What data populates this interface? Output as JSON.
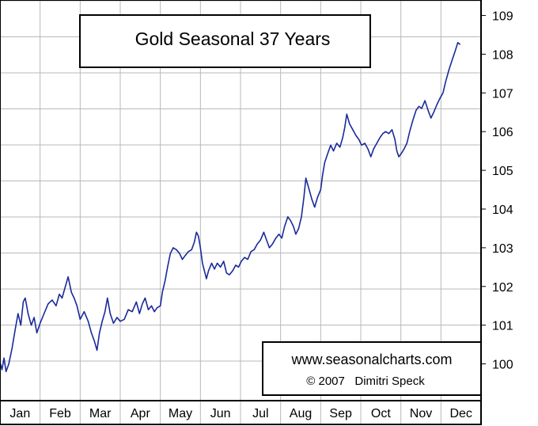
{
  "chart_data": {
    "type": "line",
    "title": "Gold Seasonal 37 Years",
    "credit_url": "www.seasonalcharts.com",
    "credit_author": "© 2007   Dimitri Speck",
    "x_categories": [
      "Jan",
      "Feb",
      "Mar",
      "Apr",
      "May",
      "Jun",
      "Jul",
      "Aug",
      "Sep",
      "Oct",
      "Nov",
      "Dec"
    ],
    "y_ticks": [
      100,
      101,
      102,
      103,
      104,
      105,
      106,
      107,
      108,
      109
    ],
    "ylim": [
      99.05,
      109.4
    ],
    "xlim": [
      0,
      12
    ],
    "grid": true,
    "y_axis_side": "right",
    "line_color": "#1a2a9a",
    "series": [
      {
        "values": [
          [
            0.0,
            100.05
          ],
          [
            0.05,
            99.85
          ],
          [
            0.1,
            100.15
          ],
          [
            0.15,
            99.8
          ],
          [
            0.22,
            100.0
          ],
          [
            0.3,
            100.4
          ],
          [
            0.38,
            100.9
          ],
          [
            0.45,
            101.3
          ],
          [
            0.52,
            101.0
          ],
          [
            0.58,
            101.6
          ],
          [
            0.63,
            101.7
          ],
          [
            0.7,
            101.3
          ],
          [
            0.78,
            101.0
          ],
          [
            0.85,
            101.2
          ],
          [
            0.92,
            100.8
          ],
          [
            1.0,
            101.05
          ],
          [
            1.1,
            101.3
          ],
          [
            1.2,
            101.55
          ],
          [
            1.3,
            101.65
          ],
          [
            1.4,
            101.5
          ],
          [
            1.48,
            101.8
          ],
          [
            1.55,
            101.7
          ],
          [
            1.63,
            102.0
          ],
          [
            1.7,
            102.25
          ],
          [
            1.78,
            101.85
          ],
          [
            1.85,
            101.7
          ],
          [
            1.92,
            101.5
          ],
          [
            2.0,
            101.15
          ],
          [
            2.1,
            101.35
          ],
          [
            2.2,
            101.1
          ],
          [
            2.28,
            100.8
          ],
          [
            2.35,
            100.6
          ],
          [
            2.42,
            100.35
          ],
          [
            2.48,
            100.8
          ],
          [
            2.55,
            101.1
          ],
          [
            2.62,
            101.35
          ],
          [
            2.68,
            101.7
          ],
          [
            2.75,
            101.3
          ],
          [
            2.83,
            101.05
          ],
          [
            2.92,
            101.2
          ],
          [
            3.0,
            101.1
          ],
          [
            3.1,
            101.15
          ],
          [
            3.2,
            101.4
          ],
          [
            3.3,
            101.35
          ],
          [
            3.4,
            101.6
          ],
          [
            3.48,
            101.3
          ],
          [
            3.55,
            101.55
          ],
          [
            3.62,
            101.7
          ],
          [
            3.7,
            101.4
          ],
          [
            3.78,
            101.5
          ],
          [
            3.85,
            101.35
          ],
          [
            3.92,
            101.45
          ],
          [
            4.0,
            101.5
          ],
          [
            4.05,
            101.85
          ],
          [
            4.12,
            102.15
          ],
          [
            4.18,
            102.5
          ],
          [
            4.25,
            102.85
          ],
          [
            4.32,
            103.0
          ],
          [
            4.4,
            102.95
          ],
          [
            4.48,
            102.85
          ],
          [
            4.55,
            102.7
          ],
          [
            4.62,
            102.8
          ],
          [
            4.7,
            102.9
          ],
          [
            4.78,
            102.95
          ],
          [
            4.85,
            103.15
          ],
          [
            4.9,
            103.4
          ],
          [
            4.95,
            103.3
          ],
          [
            5.0,
            103.0
          ],
          [
            5.05,
            102.6
          ],
          [
            5.1,
            102.4
          ],
          [
            5.15,
            102.2
          ],
          [
            5.2,
            102.4
          ],
          [
            5.28,
            102.6
          ],
          [
            5.35,
            102.45
          ],
          [
            5.42,
            102.6
          ],
          [
            5.5,
            102.5
          ],
          [
            5.58,
            102.65
          ],
          [
            5.65,
            102.35
          ],
          [
            5.72,
            102.3
          ],
          [
            5.8,
            102.4
          ],
          [
            5.88,
            102.55
          ],
          [
            5.95,
            102.5
          ],
          [
            6.02,
            102.65
          ],
          [
            6.1,
            102.75
          ],
          [
            6.18,
            102.7
          ],
          [
            6.26,
            102.9
          ],
          [
            6.34,
            102.95
          ],
          [
            6.42,
            103.1
          ],
          [
            6.5,
            103.2
          ],
          [
            6.58,
            103.4
          ],
          [
            6.65,
            103.2
          ],
          [
            6.72,
            103.0
          ],
          [
            6.8,
            103.1
          ],
          [
            6.88,
            103.25
          ],
          [
            6.96,
            103.35
          ],
          [
            7.03,
            103.25
          ],
          [
            7.1,
            103.55
          ],
          [
            7.18,
            103.8
          ],
          [
            7.25,
            103.7
          ],
          [
            7.32,
            103.55
          ],
          [
            7.38,
            103.35
          ],
          [
            7.45,
            103.5
          ],
          [
            7.52,
            103.8
          ],
          [
            7.58,
            104.3
          ],
          [
            7.63,
            104.8
          ],
          [
            7.7,
            104.55
          ],
          [
            7.78,
            104.25
          ],
          [
            7.85,
            104.05
          ],
          [
            7.92,
            104.3
          ],
          [
            8.0,
            104.5
          ],
          [
            8.05,
            104.9
          ],
          [
            8.1,
            105.2
          ],
          [
            8.18,
            105.45
          ],
          [
            8.25,
            105.65
          ],
          [
            8.32,
            105.5
          ],
          [
            8.4,
            105.7
          ],
          [
            8.48,
            105.6
          ],
          [
            8.55,
            105.85
          ],
          [
            8.6,
            106.1
          ],
          [
            8.65,
            106.45
          ],
          [
            8.72,
            106.2
          ],
          [
            8.8,
            106.05
          ],
          [
            8.88,
            105.9
          ],
          [
            8.95,
            105.8
          ],
          [
            9.02,
            105.65
          ],
          [
            9.1,
            105.7
          ],
          [
            9.18,
            105.55
          ],
          [
            9.25,
            105.35
          ],
          [
            9.32,
            105.55
          ],
          [
            9.4,
            105.7
          ],
          [
            9.48,
            105.85
          ],
          [
            9.55,
            105.95
          ],
          [
            9.62,
            106.0
          ],
          [
            9.7,
            105.95
          ],
          [
            9.78,
            106.05
          ],
          [
            9.85,
            105.8
          ],
          [
            9.9,
            105.5
          ],
          [
            9.95,
            105.35
          ],
          [
            10.02,
            105.45
          ],
          [
            10.08,
            105.55
          ],
          [
            10.15,
            105.7
          ],
          [
            10.22,
            106.0
          ],
          [
            10.3,
            106.3
          ],
          [
            10.38,
            106.55
          ],
          [
            10.45,
            106.65
          ],
          [
            10.52,
            106.6
          ],
          [
            10.6,
            106.8
          ],
          [
            10.68,
            106.55
          ],
          [
            10.75,
            106.35
          ],
          [
            10.82,
            106.5
          ],
          [
            10.9,
            106.7
          ],
          [
            10.97,
            106.85
          ],
          [
            11.05,
            107.0
          ],
          [
            11.12,
            107.3
          ],
          [
            11.2,
            107.6
          ],
          [
            11.28,
            107.85
          ],
          [
            11.36,
            108.1
          ],
          [
            11.42,
            108.3
          ],
          [
            11.48,
            108.25
          ]
        ]
      }
    ]
  }
}
